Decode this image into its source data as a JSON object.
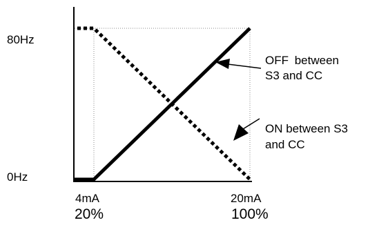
{
  "y_axis": {
    "top_label": "80Hz",
    "bottom_label": "0Hz"
  },
  "x_axis": {
    "left": {
      "current": "4mA",
      "percent": "20%"
    },
    "right": {
      "current": "20mA",
      "percent": "100%"
    }
  },
  "annotations": {
    "off": {
      "line1": "OFF between",
      "line2": "S3 and CC"
    },
    "on": {
      "line1": "ON between S3",
      "line2": "and CC"
    }
  },
  "diagram": {
    "off_line": {
      "style": "solid",
      "from": [
        "4mA",
        "0Hz"
      ],
      "to": [
        "20mA",
        "80Hz"
      ]
    },
    "on_line": {
      "style": "dotted",
      "from": [
        "4mA",
        "80Hz"
      ],
      "to": [
        "20mA",
        "0Hz"
      ]
    },
    "colors": {
      "line": "#000000",
      "guide": "#888888"
    }
  }
}
